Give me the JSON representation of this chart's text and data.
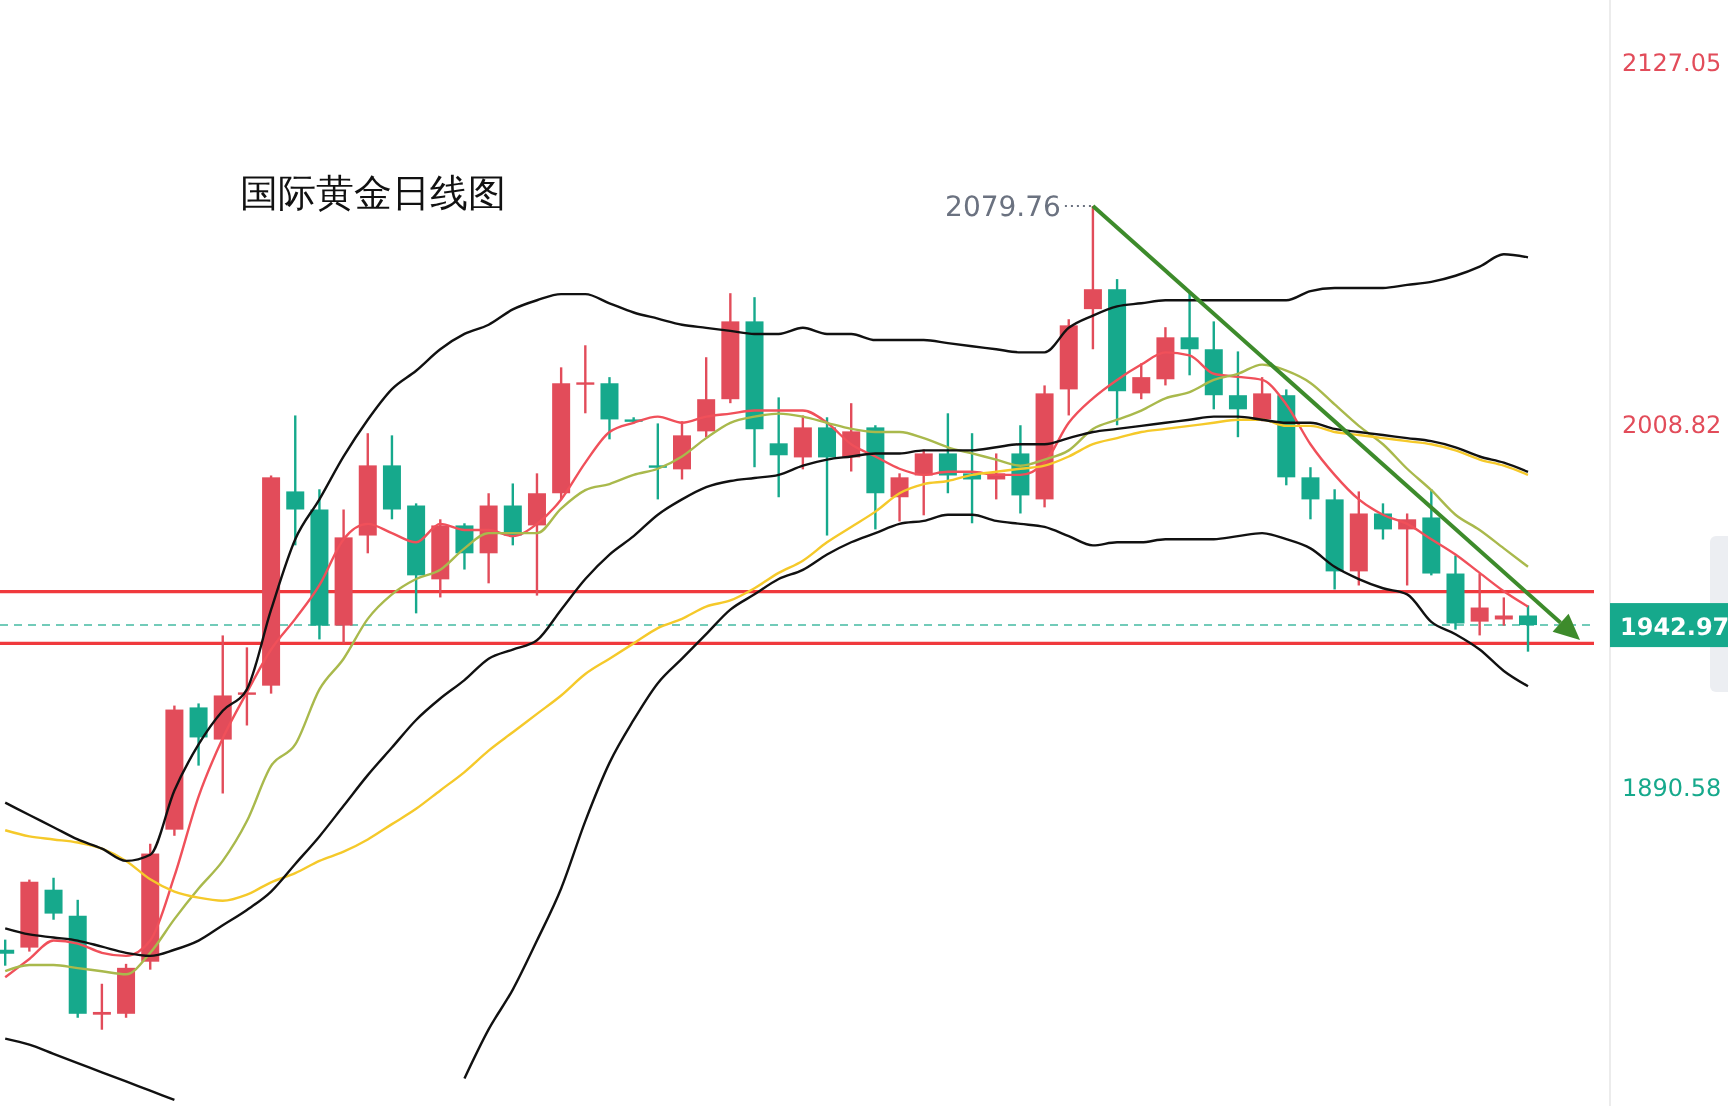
{
  "chart_data": {
    "type": "candlestick",
    "title": "国际黄金日线图",
    "categories": [
      null,
      null,
      null,
      null,
      null,
      null,
      null,
      null,
      null,
      null,
      null,
      null,
      null,
      null,
      null,
      null,
      null,
      null,
      null,
      null,
      null,
      null,
      null,
      null,
      null,
      null,
      null,
      null,
      null,
      null,
      null,
      null,
      null,
      null,
      null,
      null,
      null,
      null,
      null,
      null,
      null,
      null,
      null,
      null,
      null,
      null,
      null,
      null,
      null,
      null,
      null,
      null,
      null,
      null,
      null,
      null,
      null,
      null,
      null,
      null,
      null,
      null,
      null,
      null
    ],
    "ohlc": [
      [
        1837.0,
        1840.3,
        1831.8,
        1835.7
      ],
      [
        1837.7,
        1859.9,
        1836.4,
        1859.2
      ],
      [
        1856.6,
        1860.5,
        1846.8,
        1848.8
      ],
      [
        1848.1,
        1853.3,
        1814.8,
        1816.1
      ],
      [
        1815.8,
        1825.9,
        1810.9,
        1816.7
      ],
      [
        1816.1,
        1832.4,
        1814.8,
        1831.1
      ],
      [
        1833.1,
        1871.6,
        1830.5,
        1868.4
      ],
      [
        1876.2,
        1916.7,
        1874.2,
        1915.4
      ],
      [
        1916.1,
        1917.4,
        1897.1,
        1906.3
      ],
      [
        1905.6,
        1939.6,
        1888.0,
        1920.0
      ],
      [
        1920.3,
        1935.7,
        1910.2,
        1921.0
      ],
      [
        1923.2,
        1991.8,
        1920.6,
        1991.2
      ],
      [
        1986.6,
        2011.4,
        1969.0,
        1980.7
      ],
      [
        1980.7,
        1987.3,
        1938.3,
        1942.8
      ],
      [
        1942.8,
        1980.7,
        1937.0,
        1971.6
      ],
      [
        1972.2,
        2005.6,
        1966.4,
        1995.1
      ],
      [
        1995.1,
        2004.9,
        1977.5,
        1980.7
      ],
      [
        1982.0,
        1982.7,
        1946.8,
        1959.2
      ],
      [
        1957.9,
        1977.5,
        1952.0,
        1975.5
      ],
      [
        1975.5,
        1976.2,
        1961.1,
        1966.4
      ],
      [
        1966.4,
        1986.0,
        1956.6,
        1982.0
      ],
      [
        1982.0,
        1989.2,
        1969.0,
        1972.2
      ],
      [
        1975.5,
        1992.5,
        1952.6,
        1986.0
      ],
      [
        1986.0,
        2027.1,
        1984.0,
        2021.9
      ],
      [
        2021.6,
        2034.3,
        2012.1,
        2022.2
      ],
      [
        2021.9,
        2023.9,
        2003.6,
        2010.1
      ],
      [
        2010.1,
        2010.8,
        2008.8,
        2009.5
      ],
      [
        1995.1,
        2008.8,
        1984.0,
        1994.5
      ],
      [
        1993.8,
        2009.5,
        1990.5,
        2004.9
      ],
      [
        2006.2,
        2030.4,
        2004.3,
        2016.7
      ],
      [
        2016.7,
        2051.3,
        2015.4,
        2042.1
      ],
      [
        2042.1,
        2050.0,
        1994.5,
        2006.9
      ],
      [
        2002.3,
        2017.3,
        1984.7,
        1998.4
      ],
      [
        1997.7,
        2011.4,
        1993.8,
        2007.5
      ],
      [
        2007.5,
        2010.8,
        1972.2,
        1997.7
      ],
      [
        1997.7,
        2015.4,
        1993.1,
        2006.2
      ],
      [
        2007.5,
        2008.2,
        1974.2,
        1986.0
      ],
      [
        1984.7,
        1992.5,
        1976.8,
        1991.2
      ],
      [
        1991.8,
        2000.3,
        1978.8,
        1999.0
      ],
      [
        1999.0,
        2012.1,
        1986.0,
        1991.8
      ],
      [
        1992.5,
        2005.6,
        1976.2,
        1990.5
      ],
      [
        1990.5,
        1999.0,
        1984.0,
        1992.5
      ],
      [
        1999.0,
        2008.2,
        1979.4,
        1985.3
      ],
      [
        1984.0,
        2021.2,
        1981.4,
        2018.6
      ],
      [
        2019.9,
        2042.8,
        2011.4,
        2040.8
      ],
      [
        2046.1,
        2079.76,
        2033.0,
        2052.6
      ],
      [
        2052.6,
        2055.9,
        2008.2,
        2019.3
      ],
      [
        2018.6,
        2028.4,
        2016.7,
        2023.9
      ],
      [
        2023.2,
        2040.2,
        2021.2,
        2036.9
      ],
      [
        2036.9,
        2051.3,
        2024.5,
        2033.0
      ],
      [
        2033.0,
        2042.1,
        2013.4,
        2018.0
      ],
      [
        2018.0,
        2032.3,
        2004.3,
        2013.4
      ],
      [
        2010.1,
        2023.9,
        2009.5,
        2018.6
      ],
      [
        2018.0,
        2019.9,
        1988.6,
        1991.2
      ],
      [
        1991.2,
        1994.5,
        1977.5,
        1984.0
      ],
      [
        1984.0,
        1987.3,
        1954.6,
        1960.5
      ],
      [
        1960.5,
        1986.6,
        1955.9,
        1979.4
      ],
      [
        1979.4,
        1982.7,
        1970.9,
        1974.2
      ],
      [
        1974.2,
        1979.4,
        1955.9,
        1977.5
      ],
      [
        1978.1,
        1987.3,
        1959.2,
        1959.8
      ],
      [
        1959.8,
        1965.7,
        1941.5,
        1943.5
      ],
      [
        1944.1,
        1959.8,
        1939.6,
        1948.7
      ],
      [
        1944.8,
        1952.0,
        1942.8,
        1946.1
      ],
      [
        1946.1,
        1949.4,
        1934.3,
        1942.97
      ]
    ],
    "colors": [
      "#16a98c",
      "#e24c5a",
      "#16a98c",
      "#16a98c",
      "#e24c5a",
      "#e24c5a",
      "#e24c5a",
      "#e24c5a",
      "#16a98c",
      "#e24c5a",
      "#e24c5a",
      "#e24c5a",
      "#16a98c",
      "#16a98c",
      "#e24c5a",
      "#e24c5a",
      "#16a98c",
      "#16a98c",
      "#e24c5a",
      "#16a98c",
      "#e24c5a",
      "#16a98c",
      "#e24c5a",
      "#e24c5a",
      "#e24c5a",
      "#16a98c",
      "#16a98c",
      "#16a98c",
      "#e24c5a",
      "#e24c5a",
      "#e24c5a",
      "#16a98c",
      "#16a98c",
      "#e24c5a",
      "#16a98c",
      "#e24c5a",
      "#16a98c",
      "#e24c5a",
      "#e24c5a",
      "#16a98c",
      "#16a98c",
      "#e24c5a",
      "#16a98c",
      "#e24c5a",
      "#e24c5a",
      "#e24c5a",
      "#16a98c",
      "#e24c5a",
      "#e24c5a",
      "#16a98c",
      "#16a98c",
      "#16a98c",
      "#e24c5a",
      "#16a98c",
      "#16a98c",
      "#16a98c",
      "#e24c5a",
      "#16a98c",
      "#e24c5a",
      "#16a98c",
      "#16a98c",
      "#e24c5a",
      "#e24c5a",
      "#16a98c"
    ],
    "series": [
      {
        "type": "line",
        "color": "#f0505a",
        "values": [
          1828,
          1834,
          1840,
          1839,
          1836,
          1835,
          1840,
          1861,
          1887,
          1906,
          1921,
          1935,
          1945,
          1956,
          1971,
          1976,
          1973,
          1970,
          1976,
          1974,
          1974,
          1972,
          1976,
          1984,
          1996,
          2006,
          2009,
          2011,
          2009,
          2011,
          2012,
          2013,
          2013,
          2013,
          2009,
          2002,
          1998,
          1994,
          1992,
          1993,
          1993,
          1992,
          1992,
          1996,
          2009,
          2017,
          2023,
          2028,
          2032,
          2031,
          2025,
          2024,
          2023,
          2015,
          2002,
          1992,
          1984,
          1979,
          1976,
          1971,
          1966,
          1960,
          1954,
          1949
        ]
      },
      {
        "type": "line",
        "color": "#a9b94c",
        "values": [
          1830,
          1832,
          1832,
          1831,
          1830,
          1829,
          1836,
          1847,
          1857,
          1866,
          1879,
          1897,
          1904,
          1922,
          1932,
          1945,
          1953,
          1958,
          1961,
          1968,
          1973,
          1973,
          1973,
          1981,
          1987,
          1989,
          1992,
          1994,
          1998,
          2004,
          2009,
          2011,
          2012,
          2011,
          2009,
          2007,
          2006,
          2006,
          2004,
          2001,
          1999,
          1997,
          1995,
          1997,
          2000,
          2007,
          2010,
          2013,
          2017,
          2019,
          2023,
          2025,
          2028,
          2026,
          2022,
          2015,
          2008,
          2002,
          1994,
          1987,
          1979,
          1974,
          1968,
          1962
        ]
      },
      {
        "type": "line",
        "color": "#f5c92a",
        "values": [
          1876,
          1874,
          1873,
          1872,
          1870,
          1866,
          1860,
          1856,
          1854,
          1853,
          1855,
          1859,
          1862,
          1866,
          1869,
          1873,
          1878,
          1883,
          1889,
          1895,
          1902,
          1908,
          1914,
          1920,
          1927,
          1932,
          1937,
          1942,
          1945,
          1949,
          1951,
          1955,
          1960,
          1964,
          1970,
          1975,
          1980,
          1986,
          1989,
          1990,
          1992,
          1993,
          1994,
          1995,
          1998,
          2002,
          2004,
          2006,
          2007,
          2008,
          2009,
          2010,
          2010,
          2008,
          2008,
          2006,
          2005,
          2004,
          2003,
          2002,
          2000,
          1997,
          1995,
          1992
        ]
      },
      {
        "type": "line",
        "color": "#111111",
        "values": [
          1885,
          1881,
          1877,
          1873,
          1870,
          1866,
          1868,
          1889,
          1904,
          1915,
          1922,
          1948,
          1971,
          1984,
          1998,
          2010,
          2020,
          2026,
          2033,
          2038,
          2041,
          2046,
          2049,
          2051,
          2051,
          2048,
          2045,
          2043,
          2041,
          2040,
          2039,
          2038,
          2038,
          2040,
          2038,
          2038,
          2036,
          2036,
          2036,
          2035,
          2034,
          2033,
          2032,
          2032,
          2040,
          2044,
          2047,
          2048,
          2049,
          2049,
          2049,
          2049,
          2049,
          2049,
          2052,
          2053,
          2053,
          2053,
          2054,
          2055,
          2057,
          2060,
          2064,
          2063
        ]
      },
      {
        "type": "line",
        "color": "#111111",
        "values": [
          1844,
          1842,
          1841,
          1840,
          1838,
          1836,
          1835,
          1837,
          1840,
          1845,
          1850,
          1856,
          1865,
          1874,
          1884,
          1894,
          1903,
          1912,
          1919,
          1925,
          1932,
          1935,
          1938,
          1948,
          1958,
          1966,
          1972,
          1979,
          1984,
          1988,
          1990,
          1991,
          1992,
          1995,
          1997,
          1998,
          1999,
          1999,
          2000,
          2000,
          2000,
          2001,
          2002,
          2002,
          2004,
          2006,
          2007,
          2008,
          2009,
          2010,
          2011,
          2011,
          2010,
          2009,
          2009,
          2007,
          2006,
          2005,
          2004,
          2003,
          2001,
          1998,
          1996,
          1993
        ]
      },
      {
        "type": "line",
        "color": "#111111",
        "values": [
          1808,
          1806,
          1803,
          1800,
          1797,
          1794,
          1791,
          1788,
          null,
          null,
          null,
          null,
          null,
          null,
          null,
          null,
          null,
          null,
          null,
          1795,
          1811,
          1824,
          1840,
          1857,
          1879,
          1898,
          1912,
          1924,
          1932,
          1940,
          1948,
          1953,
          1958,
          1961,
          1966,
          1970,
          1973,
          1976,
          1977,
          1979,
          1979,
          1977,
          1976,
          1975,
          1972,
          1969,
          1970,
          1970,
          1971,
          1971,
          1971,
          1972,
          1973,
          1971,
          1968,
          1962,
          1958,
          1955,
          1953,
          1944,
          1940,
          1935,
          1928,
          1923
        ]
      }
    ],
    "ylim": [
      1786,
      2147
    ],
    "yticks": [
      2127.05,
      2008.82,
      1890.58
    ],
    "tick_labels": "y",
    "ref_lines": [
      {
        "axis": "y",
        "value": 1942.97,
        "label": "1942.97",
        "color": "#16a98c",
        "line_style": "dashed"
      },
      {
        "axis": "y",
        "value": 1937.0,
        "color": "#f0393c",
        "line_style": "solid"
      },
      {
        "axis": "y",
        "value": 1953.9,
        "color": "#f0393c",
        "line_style": "solid"
      }
    ],
    "annotations": [
      "2079.76"
    ]
  }
}
